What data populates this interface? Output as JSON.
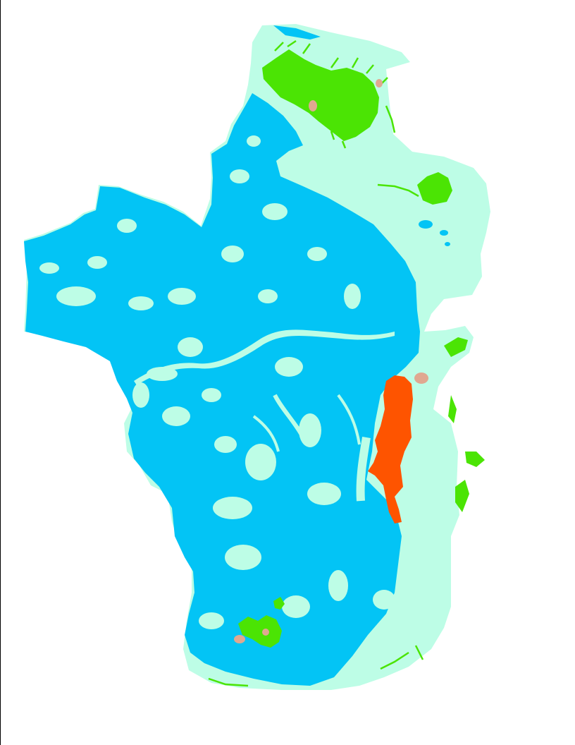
{
  "map": {
    "colors": {
      "background": "#ffffff",
      "border": "#000000",
      "light_zone": "#bdfde6",
      "blue_zone": "#03c4f5",
      "green_zone": "#4be404",
      "orange_zone": "#fe5400",
      "tan_zone": "#e0a890"
    }
  }
}
